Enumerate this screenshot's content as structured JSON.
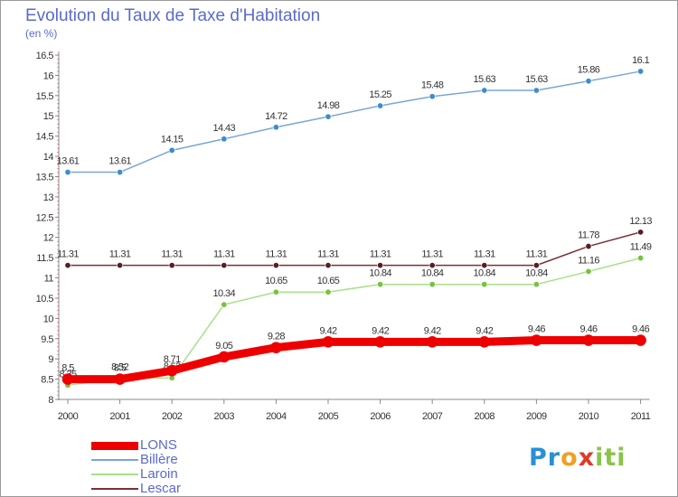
{
  "chart_data": {
    "type": "line",
    "title": "Evolution du Taux de Taxe d'Habitation",
    "ylabel": "(en %)",
    "xlabel": "",
    "ylim": [
      8,
      16.5
    ],
    "y_ticks": [
      "8",
      "8.5",
      "9",
      "9.5",
      "10",
      "10.5",
      "11",
      "11.5",
      "12",
      "12.5",
      "13",
      "13.5",
      "14",
      "14.5",
      "15",
      "15.5",
      "16",
      "16.5"
    ],
    "categories": [
      "2000",
      "2001",
      "2002",
      "2003",
      "2004",
      "2005",
      "2006",
      "2007",
      "2008",
      "2009",
      "2010",
      "2011"
    ],
    "series": [
      {
        "name": "Billère",
        "color": "#7aa6d6",
        "marker": "#3d8cd0",
        "width": 1.5,
        "values": [
          13.61,
          13.61,
          14.15,
          14.43,
          14.72,
          14.98,
          15.25,
          15.48,
          15.63,
          15.63,
          15.86,
          16.1
        ],
        "labels": [
          "13.61",
          "13.61",
          "14.15",
          "14.43",
          "14.72",
          "14.98",
          "15.25",
          "15.48",
          "15.63",
          "15.63",
          "15.86",
          "16.1"
        ]
      },
      {
        "name": "Lescar",
        "color": "#7a3038",
        "marker": "#5a1e24",
        "width": 1.5,
        "values": [
          11.31,
          11.31,
          11.31,
          11.31,
          11.31,
          11.31,
          11.31,
          11.31,
          11.31,
          11.31,
          11.78,
          12.13
        ],
        "labels": [
          "11.31",
          "11.31",
          "11.31",
          "11.31",
          "11.31",
          "11.31",
          "11.31",
          "11.31",
          "11.31",
          "11.31",
          "11.78",
          "12.13"
        ]
      },
      {
        "name": "Laroin",
        "color": "#a8e08a",
        "marker": "#74c43e",
        "width": 1.5,
        "values": [
          8.35,
          8.52,
          8.53,
          10.34,
          10.65,
          10.65,
          10.84,
          10.84,
          10.84,
          10.84,
          11.16,
          11.49
        ],
        "labels": [
          "8.35",
          "8.52",
          "8.53",
          "10.34",
          "10.65",
          "10.65",
          "10.84",
          "10.84",
          "10.84",
          "10.84",
          "11.16",
          "11.49"
        ]
      },
      {
        "name": "LONS",
        "color": "#ee0000",
        "marker": "#ee0000",
        "width": 9,
        "values": [
          8.5,
          8.5,
          8.71,
          9.05,
          9.28,
          9.42,
          9.42,
          9.42,
          9.42,
          9.46,
          9.46,
          9.46
        ],
        "labels": [
          "8.5",
          "8.5",
          "8.71",
          "9.05",
          "9.28",
          "9.42",
          "9.42",
          "9.42",
          "9.42",
          "9.46",
          "9.46",
          "9.46"
        ]
      }
    ],
    "legend_order": [
      "LONS",
      "Billère",
      "Laroin",
      "Lescar"
    ],
    "legend_position": "bottom-left"
  },
  "logo": {
    "text": "Proxiti",
    "letters": [
      "P",
      "r",
      "o",
      "x",
      "i",
      "t",
      "i"
    ],
    "colors": [
      "#2a8fd6",
      "#2a8fd6",
      "#f0a020",
      "#e03a2a",
      "#8bc34a",
      "#8bc34a",
      "#8bc34a"
    ]
  }
}
